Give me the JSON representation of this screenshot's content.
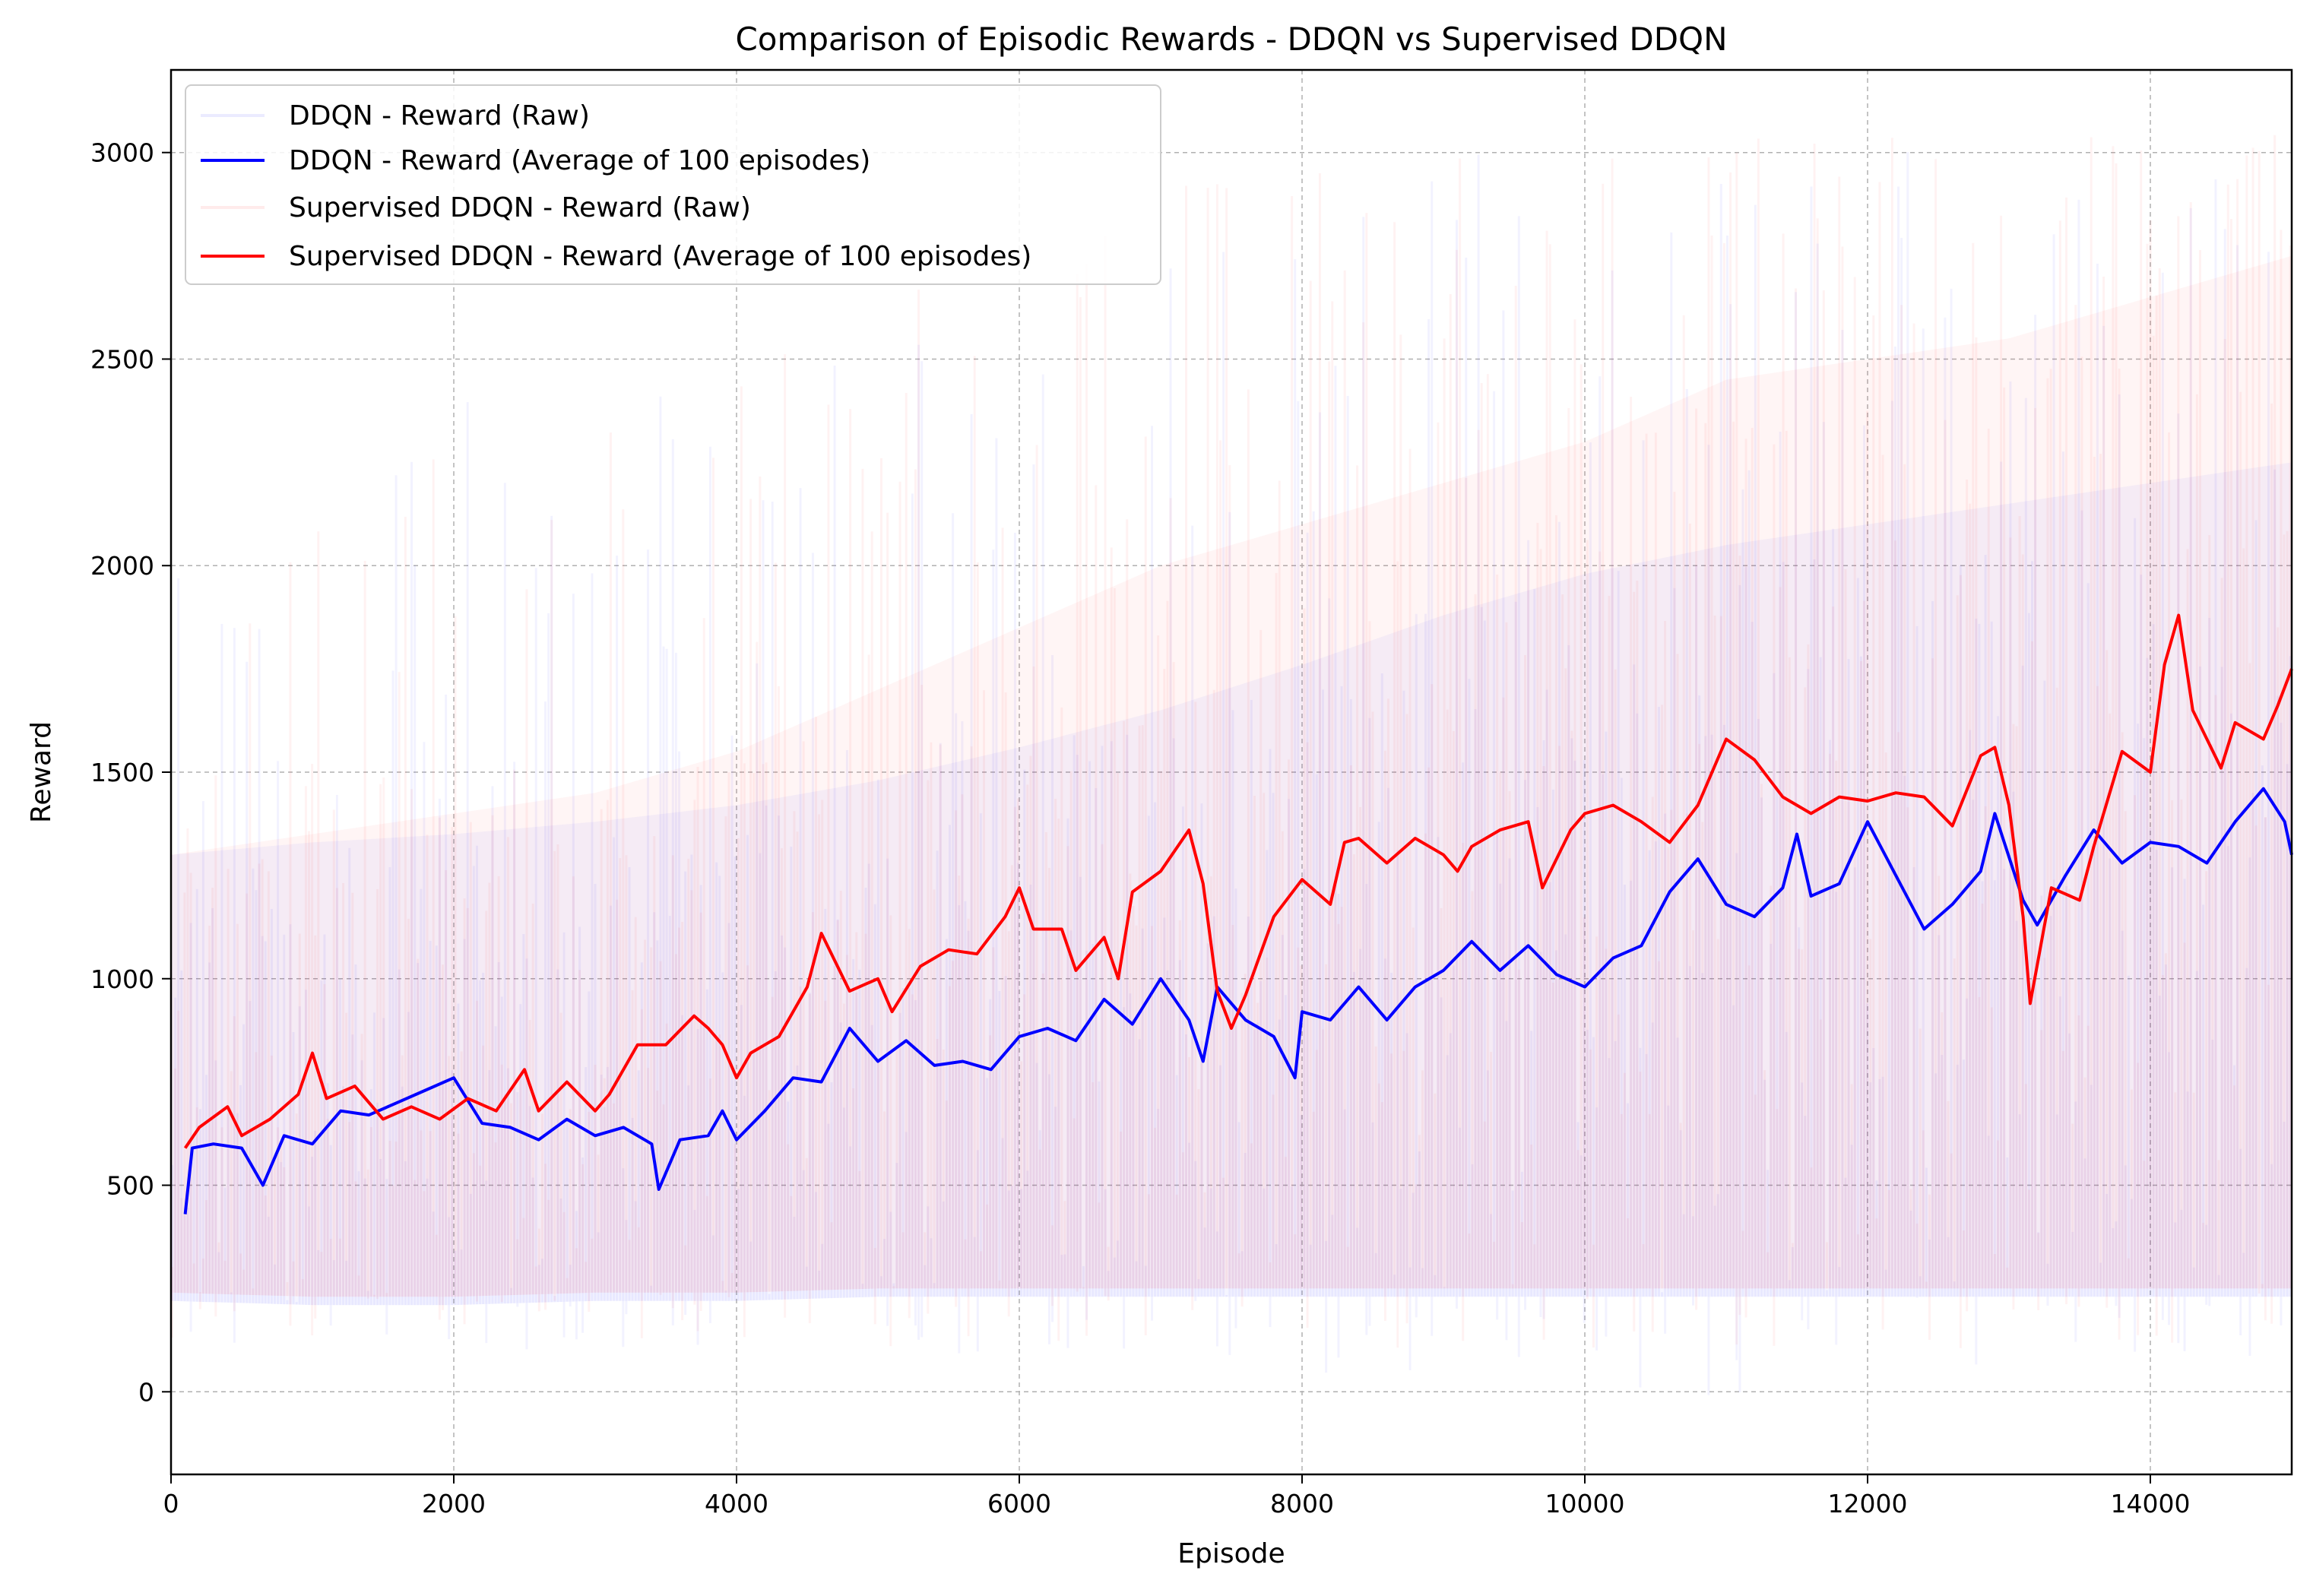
{
  "chart_data": {
    "type": "line",
    "title": "Comparison of Episodic Rewards - DDQN vs Supervised DDQN",
    "xlabel": "Episode",
    "ylabel": "Reward",
    "xlim": [
      0,
      15000
    ],
    "ylim": [
      -200,
      3200
    ],
    "xticks": [
      0,
      2000,
      4000,
      6000,
      8000,
      10000,
      12000,
      14000
    ],
    "yticks": [
      0,
      500,
      1000,
      1500,
      2000,
      2500,
      3000
    ],
    "grid": true,
    "legend_position": "upper-left",
    "series": [
      {
        "name": "DDQN - Reward (Raw)",
        "color": "#0000ff",
        "style": "raw",
        "band": {
          "x": [
            0,
            1000,
            2000,
            3000,
            4000,
            5000,
            6000,
            7000,
            8000,
            9000,
            10000,
            11000,
            12000,
            13000,
            14000,
            15000
          ],
          "low": [
            220,
            210,
            210,
            220,
            220,
            230,
            230,
            230,
            230,
            230,
            230,
            230,
            230,
            230,
            230,
            230
          ],
          "high": [
            1300,
            1330,
            1350,
            1380,
            1420,
            1480,
            1560,
            1650,
            1760,
            1880,
            1980,
            2050,
            2100,
            2150,
            2200,
            2250
          ],
          "spike_max": [
            2050,
            2200,
            2400,
            2450,
            2500,
            2600,
            2700,
            2800,
            2900,
            3000,
            3050,
            3050,
            3050,
            3050,
            3050,
            3050
          ],
          "spike_min": [
            80,
            80,
            100,
            100,
            50,
            80,
            100,
            100,
            30,
            50,
            50,
            -60,
            50,
            50,
            80,
            80
          ]
        }
      },
      {
        "name": "DDQN - Reward (Average of 100 episodes)",
        "color": "#0000ff",
        "style": "avg",
        "points": [
          [
            100,
            430
          ],
          [
            150,
            590
          ],
          [
            300,
            600
          ],
          [
            500,
            590
          ],
          [
            650,
            500
          ],
          [
            800,
            620
          ],
          [
            1000,
            600
          ],
          [
            1200,
            680
          ],
          [
            1400,
            670
          ],
          [
            1600,
            700
          ],
          [
            1800,
            730
          ],
          [
            2000,
            760
          ],
          [
            2200,
            650
          ],
          [
            2400,
            640
          ],
          [
            2600,
            610
          ],
          [
            2800,
            660
          ],
          [
            3000,
            620
          ],
          [
            3200,
            640
          ],
          [
            3400,
            600
          ],
          [
            3450,
            490
          ],
          [
            3600,
            610
          ],
          [
            3800,
            620
          ],
          [
            3900,
            680
          ],
          [
            4000,
            610
          ],
          [
            4200,
            680
          ],
          [
            4400,
            760
          ],
          [
            4600,
            750
          ],
          [
            4800,
            880
          ],
          [
            5000,
            800
          ],
          [
            5200,
            850
          ],
          [
            5400,
            790
          ],
          [
            5600,
            800
          ],
          [
            5800,
            780
          ],
          [
            6000,
            860
          ],
          [
            6200,
            880
          ],
          [
            6400,
            850
          ],
          [
            6600,
            950
          ],
          [
            6800,
            890
          ],
          [
            7000,
            1000
          ],
          [
            7200,
            900
          ],
          [
            7300,
            800
          ],
          [
            7400,
            980
          ],
          [
            7600,
            900
          ],
          [
            7800,
            860
          ],
          [
            7950,
            760
          ],
          [
            8000,
            920
          ],
          [
            8200,
            900
          ],
          [
            8400,
            980
          ],
          [
            8600,
            900
          ],
          [
            8800,
            980
          ],
          [
            9000,
            1020
          ],
          [
            9200,
            1090
          ],
          [
            9400,
            1020
          ],
          [
            9600,
            1080
          ],
          [
            9800,
            1010
          ],
          [
            10000,
            980
          ],
          [
            10200,
            1050
          ],
          [
            10400,
            1080
          ],
          [
            10600,
            1210
          ],
          [
            10800,
            1290
          ],
          [
            11000,
            1180
          ],
          [
            11200,
            1150
          ],
          [
            11400,
            1220
          ],
          [
            11500,
            1350
          ],
          [
            11600,
            1200
          ],
          [
            11800,
            1230
          ],
          [
            12000,
            1380
          ],
          [
            12200,
            1250
          ],
          [
            12400,
            1120
          ],
          [
            12600,
            1180
          ],
          [
            12800,
            1260
          ],
          [
            12900,
            1400
          ],
          [
            13100,
            1190
          ],
          [
            13200,
            1130
          ],
          [
            13400,
            1250
          ],
          [
            13600,
            1360
          ],
          [
            13800,
            1280
          ],
          [
            14000,
            1330
          ],
          [
            14200,
            1320
          ],
          [
            14400,
            1280
          ],
          [
            14600,
            1380
          ],
          [
            14800,
            1460
          ],
          [
            14950,
            1380
          ],
          [
            15000,
            1300
          ]
        ]
      },
      {
        "name": "Supervised DDQN - Reward (Raw)",
        "color": "#ff0000",
        "style": "raw",
        "band": {
          "x": [
            0,
            1000,
            2000,
            3000,
            4000,
            5000,
            6000,
            7000,
            8000,
            9000,
            10000,
            11000,
            12000,
            13000,
            14000,
            15000
          ],
          "low": [
            240,
            230,
            230,
            240,
            240,
            250,
            250,
            250,
            250,
            250,
            250,
            250,
            250,
            250,
            250,
            250
          ],
          "high": [
            1300,
            1350,
            1400,
            1450,
            1550,
            1700,
            1850,
            2000,
            2100,
            2200,
            2300,
            2450,
            2500,
            2550,
            2650,
            2750
          ],
          "spike_max": [
            2000,
            2100,
            2300,
            2400,
            2500,
            2650,
            2800,
            2950,
            3000,
            3000,
            3050,
            3050,
            3050,
            3050,
            3050,
            3050
          ],
          "spike_min": [
            100,
            100,
            120,
            120,
            100,
            100,
            120,
            120,
            100,
            100,
            100,
            100,
            100,
            100,
            100,
            100
          ]
        }
      },
      {
        "name": "Supervised DDQN - Reward (Average of 100 episodes)",
        "color": "#ff0000",
        "style": "avg",
        "points": [
          [
            100,
            590
          ],
          [
            200,
            640
          ],
          [
            400,
            690
          ],
          [
            500,
            620
          ],
          [
            700,
            660
          ],
          [
            900,
            720
          ],
          [
            1000,
            820
          ],
          [
            1100,
            710
          ],
          [
            1300,
            740
          ],
          [
            1500,
            660
          ],
          [
            1700,
            690
          ],
          [
            1900,
            660
          ],
          [
            2100,
            710
          ],
          [
            2300,
            680
          ],
          [
            2500,
            780
          ],
          [
            2600,
            680
          ],
          [
            2800,
            750
          ],
          [
            3000,
            680
          ],
          [
            3100,
            720
          ],
          [
            3300,
            840
          ],
          [
            3500,
            840
          ],
          [
            3700,
            910
          ],
          [
            3800,
            880
          ],
          [
            3900,
            840
          ],
          [
            4000,
            760
          ],
          [
            4100,
            820
          ],
          [
            4300,
            860
          ],
          [
            4500,
            980
          ],
          [
            4600,
            1110
          ],
          [
            4800,
            970
          ],
          [
            5000,
            1000
          ],
          [
            5100,
            920
          ],
          [
            5300,
            1030
          ],
          [
            5500,
            1070
          ],
          [
            5700,
            1060
          ],
          [
            5900,
            1150
          ],
          [
            6000,
            1220
          ],
          [
            6100,
            1120
          ],
          [
            6300,
            1120
          ],
          [
            6400,
            1020
          ],
          [
            6600,
            1100
          ],
          [
            6700,
            1000
          ],
          [
            6800,
            1210
          ],
          [
            7000,
            1260
          ],
          [
            7200,
            1360
          ],
          [
            7300,
            1230
          ],
          [
            7400,
            970
          ],
          [
            7500,
            880
          ],
          [
            7600,
            960
          ],
          [
            7800,
            1150
          ],
          [
            8000,
            1240
          ],
          [
            8200,
            1180
          ],
          [
            8300,
            1330
          ],
          [
            8400,
            1340
          ],
          [
            8600,
            1280
          ],
          [
            8800,
            1340
          ],
          [
            9000,
            1300
          ],
          [
            9100,
            1260
          ],
          [
            9200,
            1320
          ],
          [
            9400,
            1360
          ],
          [
            9600,
            1380
          ],
          [
            9700,
            1220
          ],
          [
            9900,
            1360
          ],
          [
            10000,
            1400
          ],
          [
            10200,
            1420
          ],
          [
            10400,
            1380
          ],
          [
            10600,
            1330
          ],
          [
            10800,
            1420
          ],
          [
            11000,
            1580
          ],
          [
            11200,
            1530
          ],
          [
            11400,
            1440
          ],
          [
            11600,
            1400
          ],
          [
            11800,
            1440
          ],
          [
            12000,
            1430
          ],
          [
            12200,
            1450
          ],
          [
            12400,
            1440
          ],
          [
            12600,
            1370
          ],
          [
            12800,
            1540
          ],
          [
            12900,
            1560
          ],
          [
            13000,
            1420
          ],
          [
            13100,
            1150
          ],
          [
            13150,
            940
          ],
          [
            13300,
            1220
          ],
          [
            13500,
            1190
          ],
          [
            13600,
            1320
          ],
          [
            13800,
            1550
          ],
          [
            14000,
            1500
          ],
          [
            14100,
            1760
          ],
          [
            14200,
            1880
          ],
          [
            14300,
            1650
          ],
          [
            14400,
            1580
          ],
          [
            14500,
            1510
          ],
          [
            14600,
            1620
          ],
          [
            14800,
            1580
          ],
          [
            14900,
            1660
          ],
          [
            15000,
            1750
          ]
        ]
      }
    ]
  }
}
